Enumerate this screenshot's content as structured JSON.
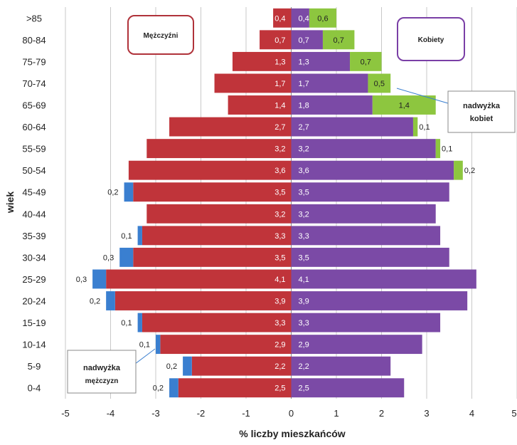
{
  "chart_data": {
    "type": "bar",
    "orientation": "horizontal",
    "categories": [
      "0-4",
      "5-9",
      "10-14",
      "15-19",
      "20-24",
      "25-29",
      "30-34",
      "35-39",
      "40-44",
      "45-49",
      "50-54",
      "55-59",
      "60-64",
      "65-69",
      "70-74",
      "75-79",
      "80-84",
      ">85"
    ],
    "series": [
      {
        "name": "Mężczyźni",
        "values": [
          2.5,
          2.2,
          2.9,
          3.3,
          3.9,
          4.1,
          3.5,
          3.3,
          3.2,
          3.5,
          3.6,
          3.2,
          2.7,
          1.4,
          1.7,
          1.3,
          0.7,
          0.4
        ],
        "color": "#c0343a"
      },
      {
        "name": "Kobiety",
        "values": [
          2.5,
          2.2,
          2.9,
          3.3,
          3.9,
          4.1,
          3.5,
          3.3,
          3.2,
          3.5,
          3.6,
          3.2,
          2.7,
          1.8,
          1.7,
          1.3,
          0.7,
          0.4
        ],
        "color": "#7b4aa6"
      }
    ],
    "male_excess": [
      0.2,
      0.2,
      0.1,
      0.1,
      0.2,
      0.3,
      0.3,
      0.1,
      null,
      0.2,
      null,
      null,
      null,
      null,
      null,
      null,
      null,
      null
    ],
    "female_excess": [
      null,
      null,
      null,
      null,
      null,
      null,
      null,
      null,
      null,
      null,
      0.2,
      0.1,
      0.1,
      1.4,
      0.5,
      0.7,
      0.7,
      0.6
    ],
    "excess_colors": {
      "male": "#3a7fd0",
      "female": "#8dc63f"
    },
    "xlim": [
      -5,
      5
    ],
    "xticks": [
      "-5",
      "-4",
      "-3",
      "-2",
      "-1",
      "0",
      "1",
      "2",
      "3",
      "4",
      "5"
    ],
    "xlabel": "% liczby mieszkańców",
    "ylabel": "wiek",
    "grid": true,
    "legend": {
      "male": "Mężczyźni",
      "female": "Kobiety"
    },
    "annotations": {
      "female_excess_label": [
        "nadwyżka",
        "kobiet"
      ],
      "male_excess_label": [
        "nadwyżka",
        "mężczyzn"
      ]
    }
  }
}
